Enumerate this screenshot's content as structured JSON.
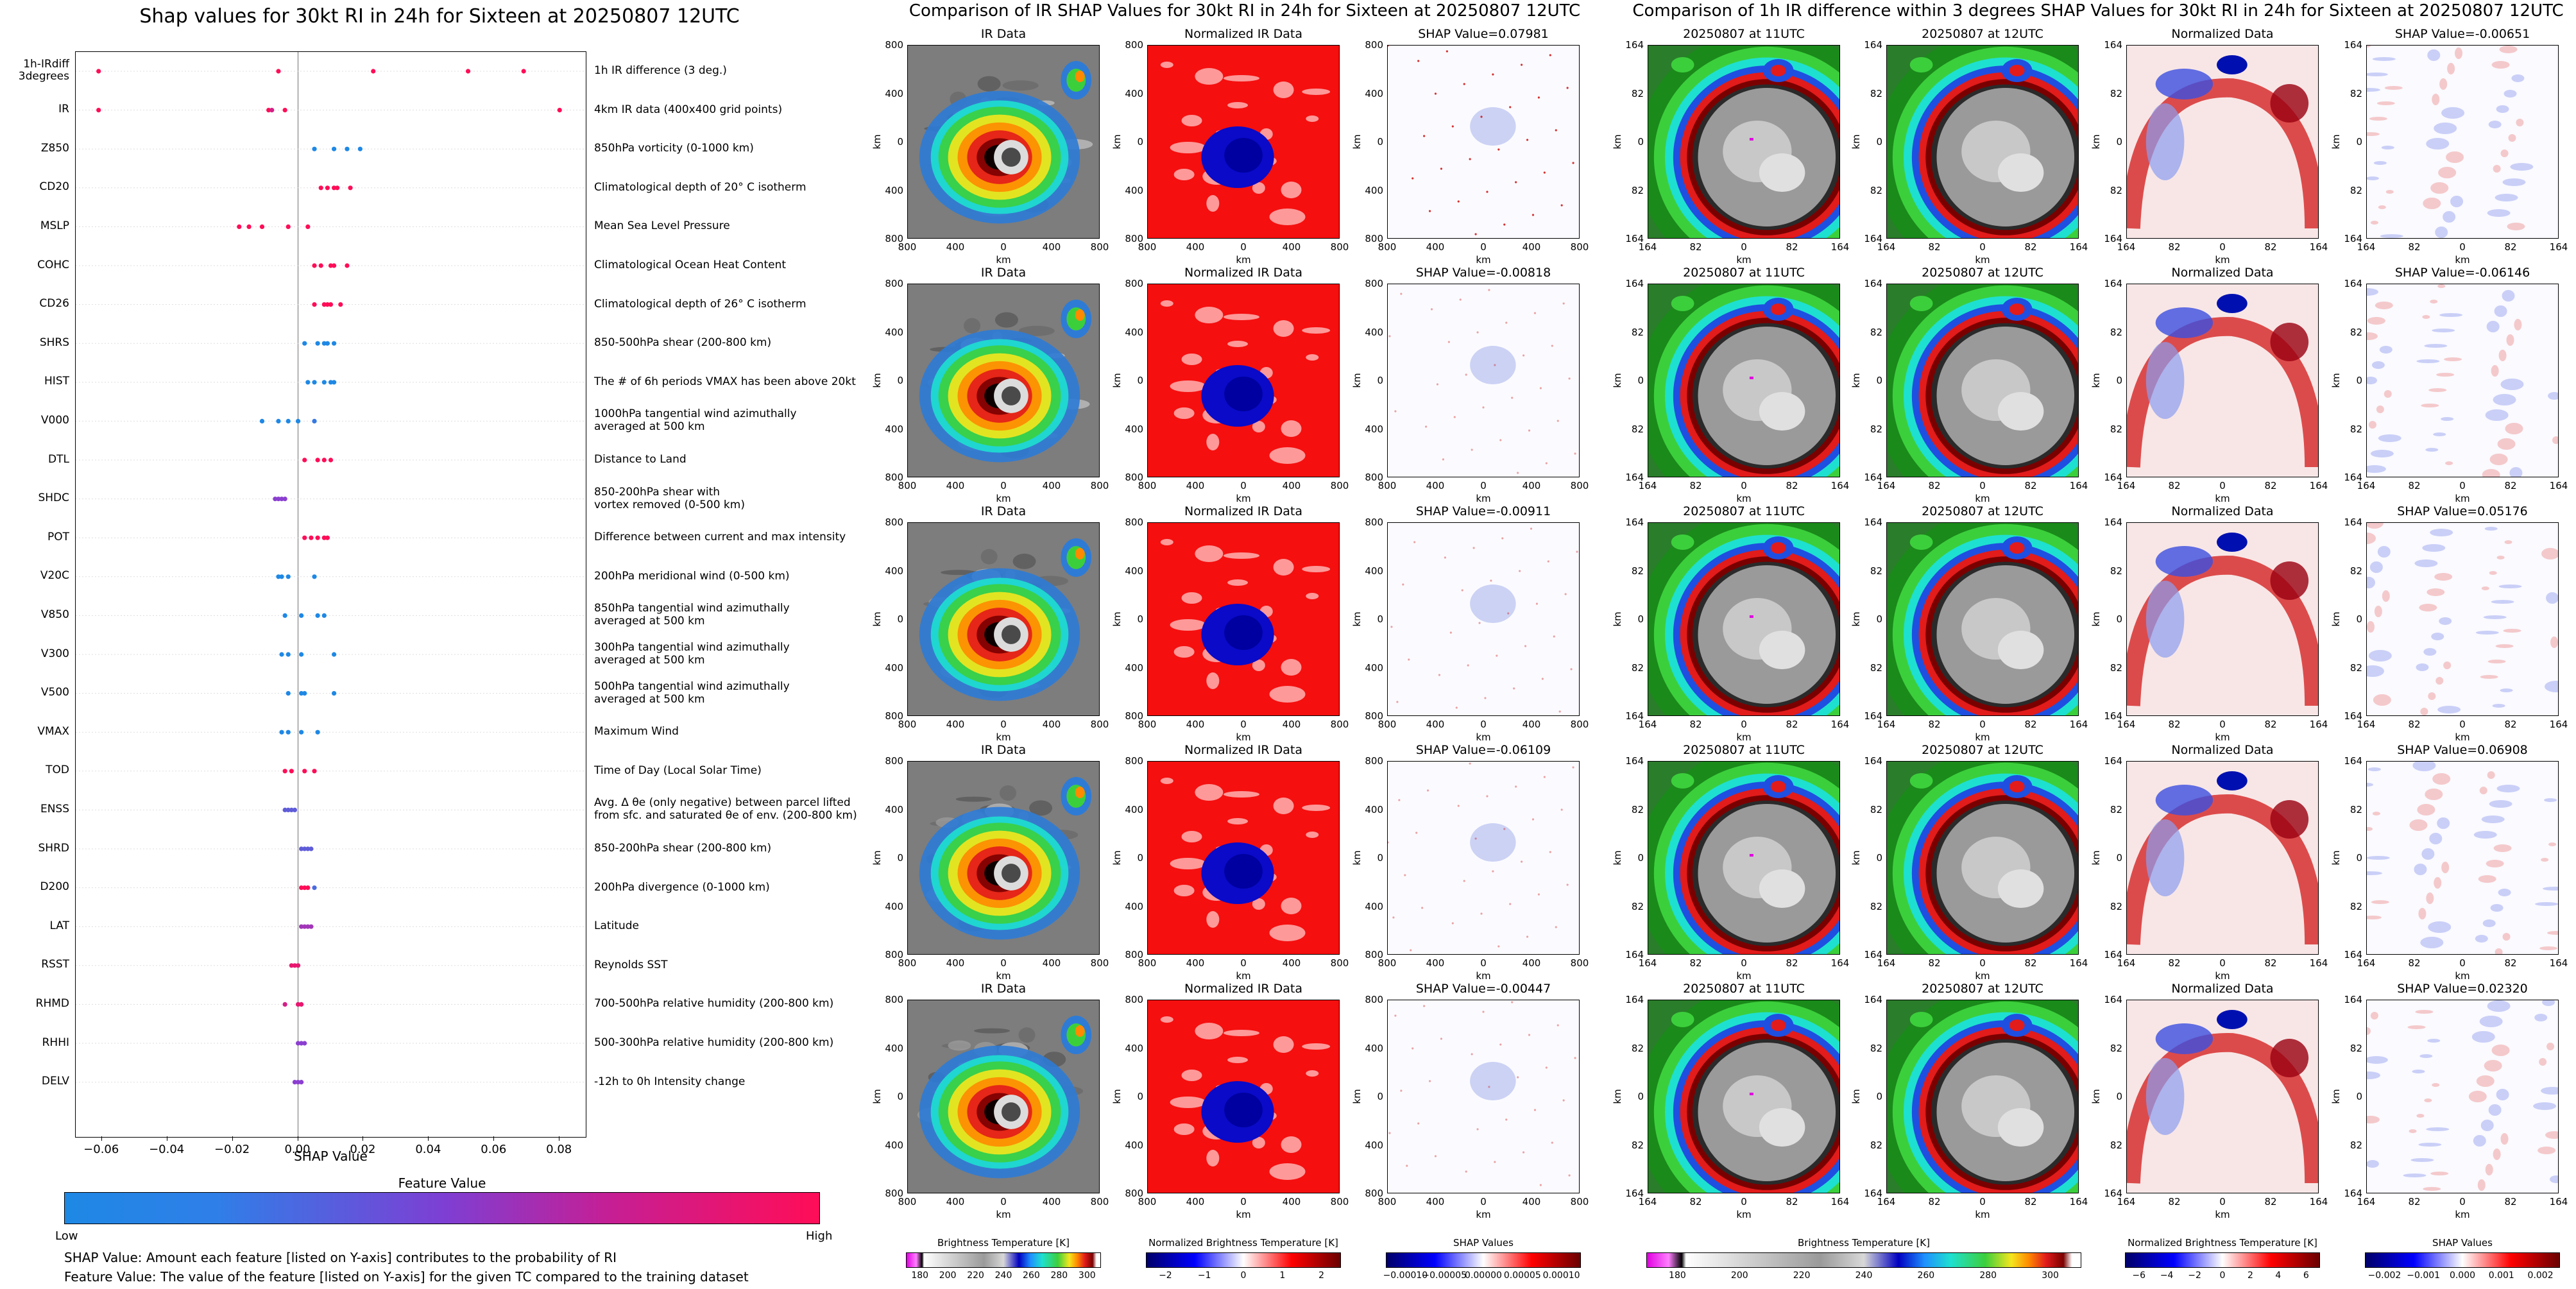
{
  "left_title": "Shap values for 30kt RI in 24h for Sixteen at 20250807 12UTC",
  "mid_title": "Comparison of IR SHAP Values for 30kt RI in 24h for Sixteen at 20250807 12UTC",
  "right_title": "Comparison of 1h IR difference within 3 degrees SHAP Values for 30kt RI in 24h for Sixteen at 20250807 12UTC",
  "xlabel": "SHAP Value",
  "fv_title": "Feature Value",
  "fv_low": "Low",
  "fv_high": "High",
  "note1": "SHAP Value: Amount each feature [listed on Y-axis] contributes to the probability of RI",
  "note2": "Feature Value: The value of the feature [listed on Y-axis] for the given TC compared to the training dataset",
  "colors": {
    "low": "#1e88e5",
    "mid": "#8b3fd0",
    "high": "#ff0d57"
  },
  "chart_data": {
    "type": "scatter",
    "title": "Shap values for 30kt RI in 24h for Sixteen at 20250807 12UTC",
    "xlabel": "SHAP Value",
    "xlim": [
      -0.068,
      0.088
    ],
    "xticks": [
      "−0.06",
      "−0.04",
      "−0.02",
      "0.00",
      "0.02",
      "0.04",
      "0.06",
      "0.08"
    ],
    "xtick_values": [
      -0.06,
      -0.04,
      -0.02,
      0.0,
      0.02,
      0.04,
      0.06,
      0.08
    ],
    "features": [
      {
        "name": "1h-IRdiff\n3degrees",
        "desc": "1h IR difference (3 deg.)",
        "points": [
          [
            -0.061,
            1
          ],
          [
            -0.006,
            1
          ],
          [
            0.023,
            1
          ],
          [
            0.052,
            1
          ],
          [
            0.069,
            1
          ]
        ]
      },
      {
        "name": "IR",
        "desc": "4km IR data (400x400 grid points)",
        "points": [
          [
            -0.061,
            1
          ],
          [
            -0.009,
            1
          ],
          [
            -0.008,
            0.8
          ],
          [
            -0.004,
            1
          ],
          [
            0.08,
            1
          ]
        ]
      },
      {
        "name": "Z850",
        "desc": "850hPa vorticity (0-1000 km)",
        "points": [
          [
            0.005,
            0
          ],
          [
            0.011,
            0
          ],
          [
            0.015,
            0
          ],
          [
            0.019,
            0
          ]
        ]
      },
      {
        "name": "CD20",
        "desc": "Climatological depth of 20° C isotherm",
        "points": [
          [
            0.007,
            1
          ],
          [
            0.009,
            1
          ],
          [
            0.011,
            1
          ],
          [
            0.012,
            1
          ],
          [
            0.016,
            1
          ]
        ]
      },
      {
        "name": "MSLP",
        "desc": "Mean Sea Level Pressure",
        "points": [
          [
            -0.018,
            1
          ],
          [
            -0.015,
            1
          ],
          [
            -0.011,
            1
          ],
          [
            -0.003,
            1
          ],
          [
            0.003,
            1
          ]
        ]
      },
      {
        "name": "COHC",
        "desc": "Climatological Ocean Heat Content",
        "points": [
          [
            0.005,
            1
          ],
          [
            0.007,
            1
          ],
          [
            0.01,
            1
          ],
          [
            0.011,
            1
          ],
          [
            0.015,
            1
          ]
        ]
      },
      {
        "name": "CD26",
        "desc": "Climatological depth of 26° C isotherm",
        "points": [
          [
            0.005,
            1
          ],
          [
            0.008,
            1
          ],
          [
            0.009,
            1
          ],
          [
            0.01,
            1
          ],
          [
            0.013,
            1
          ]
        ]
      },
      {
        "name": "SHRS",
        "desc": "850-500hPa shear (200-800 km)",
        "points": [
          [
            0.002,
            0
          ],
          [
            0.006,
            0
          ],
          [
            0.008,
            0
          ],
          [
            0.009,
            0
          ],
          [
            0.011,
            0
          ]
        ]
      },
      {
        "name": "HIST",
        "desc": "The # of 6h periods VMAX has been above 20kt",
        "points": [
          [
            0.003,
            0
          ],
          [
            0.005,
            0
          ],
          [
            0.008,
            0
          ],
          [
            0.01,
            0
          ],
          [
            0.011,
            0
          ]
        ]
      },
      {
        "name": "V000",
        "desc": "1000hPa tangential wind azimuthally\naveraged at 500 km",
        "points": [
          [
            -0.011,
            0
          ],
          [
            -0.006,
            0
          ],
          [
            -0.003,
            0
          ],
          [
            0.0,
            0
          ],
          [
            0.005,
            0.1
          ]
        ]
      },
      {
        "name": "DTL",
        "desc": "Distance to Land",
        "points": [
          [
            0.002,
            1
          ],
          [
            0.006,
            1
          ],
          [
            0.008,
            1
          ],
          [
            0.01,
            1
          ]
        ]
      },
      {
        "name": "SHDC",
        "desc": "850-200hPa shear with\nvortex removed (0-500 km)",
        "points": [
          [
            -0.007,
            0.5
          ],
          [
            -0.006,
            0.5
          ],
          [
            -0.005,
            0.5
          ],
          [
            -0.004,
            0.5
          ]
        ]
      },
      {
        "name": "POT",
        "desc": "Difference between current and max intensity",
        "points": [
          [
            0.002,
            1
          ],
          [
            0.004,
            1
          ],
          [
            0.006,
            1
          ],
          [
            0.008,
            1
          ],
          [
            0.009,
            1
          ]
        ]
      },
      {
        "name": "V20C",
        "desc": "200hPa meridional wind (0-500 km)",
        "points": [
          [
            -0.006,
            0
          ],
          [
            -0.005,
            0
          ],
          [
            -0.003,
            0
          ],
          [
            0.005,
            0
          ]
        ]
      },
      {
        "name": "V850",
        "desc": "850hPa tangential wind azimuthally\naveraged at 500 km",
        "points": [
          [
            -0.004,
            0
          ],
          [
            0.001,
            0
          ],
          [
            0.006,
            0
          ],
          [
            0.008,
            0
          ]
        ]
      },
      {
        "name": "V300",
        "desc": "300hPa tangential wind azimuthally\naveraged at 500 km",
        "points": [
          [
            -0.005,
            0
          ],
          [
            -0.003,
            0
          ],
          [
            0.001,
            0
          ],
          [
            0.011,
            0
          ]
        ]
      },
      {
        "name": "V500",
        "desc": "500hPa tangential wind azimuthally\naveraged at 500 km",
        "points": [
          [
            -0.003,
            0
          ],
          [
            0.001,
            0
          ],
          [
            0.002,
            0
          ],
          [
            0.011,
            0
          ]
        ]
      },
      {
        "name": "VMAX",
        "desc": "Maximum Wind",
        "points": [
          [
            -0.005,
            0
          ],
          [
            -0.003,
            0
          ],
          [
            0.001,
            0
          ],
          [
            0.006,
            0
          ]
        ]
      },
      {
        "name": "TOD",
        "desc": "Time of Day (Local Solar Time)",
        "points": [
          [
            -0.004,
            1
          ],
          [
            -0.002,
            1
          ],
          [
            0.002,
            1
          ],
          [
            0.005,
            1
          ]
        ]
      },
      {
        "name": "ENSS",
        "desc": "Avg. Δ θe (only negative) between parcel lifted\nfrom sfc. and saturated θe of env. (200-800 km)",
        "points": [
          [
            -0.004,
            0.3
          ],
          [
            -0.003,
            0.3
          ],
          [
            -0.002,
            0.3
          ],
          [
            -0.001,
            0.3
          ]
        ]
      },
      {
        "name": "SHRD",
        "desc": "850-200hPa shear (200-800 km)",
        "points": [
          [
            0.001,
            0.3
          ],
          [
            0.002,
            0.3
          ],
          [
            0.003,
            0.3
          ],
          [
            0.004,
            0.3
          ]
        ]
      },
      {
        "name": "D200",
        "desc": "200hPa divergence (0-1000 km)",
        "points": [
          [
            0.001,
            1
          ],
          [
            0.002,
            1
          ],
          [
            0.003,
            1
          ],
          [
            0.005,
            0.2
          ]
        ]
      },
      {
        "name": "LAT",
        "desc": "Latitude",
        "points": [
          [
            0.001,
            0.6
          ],
          [
            0.002,
            0.6
          ],
          [
            0.003,
            0.6
          ],
          [
            0.004,
            0.6
          ]
        ]
      },
      {
        "name": "RSST",
        "desc": "Reynolds SST",
        "points": [
          [
            -0.002,
            0.9
          ],
          [
            -0.001,
            0.9
          ],
          [
            0.0,
            0.9
          ]
        ]
      },
      {
        "name": "RHMD",
        "desc": "700-500hPa relative humidity (200-800 km)",
        "points": [
          [
            -0.004,
            0.8
          ],
          [
            0.0,
            0.9
          ],
          [
            0.001,
            0.9
          ]
        ]
      },
      {
        "name": "RHHI",
        "desc": "500-300hPa relative humidity (200-800 km)",
        "points": [
          [
            0.0,
            0.5
          ],
          [
            0.001,
            0.5
          ],
          [
            0.002,
            0.5
          ]
        ]
      },
      {
        "name": "DELV",
        "desc": "-12h to 0h Intensity change",
        "points": [
          [
            -0.001,
            0.5
          ],
          [
            0.0,
            0.5
          ],
          [
            0.001,
            0.5
          ]
        ]
      }
    ]
  },
  "ir_panels": {
    "headers": [
      "IR Data",
      "Normalized IR Data"
    ],
    "shap_titles": [
      "SHAP Value=0.07981",
      "SHAP Value=-0.00818",
      "SHAP Value=-0.00911",
      "SHAP Value=-0.06109",
      "SHAP Value=-0.00447"
    ],
    "yticks": [
      "800",
      "400",
      "0",
      "400",
      "800"
    ],
    "xticks": [
      "800",
      "400",
      "0",
      "400",
      "800"
    ],
    "axis_label": "km"
  },
  "diff_panels": {
    "headers": [
      "20250807 at 11UTC",
      "20250807 at 12UTC",
      "Normalized Data"
    ],
    "shap_titles": [
      "SHAP Value=-0.00651",
      "SHAP Value=-0.06146",
      "SHAP Value=0.05176",
      "SHAP Value=0.06908",
      "SHAP Value=0.02320"
    ],
    "yticks": [
      "164",
      "82",
      "0",
      "82",
      "164"
    ],
    "xticks": [
      "164",
      "82",
      "0",
      "82",
      "164"
    ],
    "axis_label": "km"
  },
  "colorbars": [
    {
      "label": "Brightness Temperature [K]",
      "ticks": [
        "180",
        "200",
        "220",
        "240",
        "260",
        "280",
        "300"
      ]
    },
    {
      "label": "Normalized Brightness Temperature [K]",
      "ticks": [
        "−2",
        "−1",
        "0",
        "1",
        "2"
      ]
    },
    {
      "label": "SHAP Values",
      "ticks": [
        "−0.00010",
        "−0.00005",
        "0.00000",
        "0.00005",
        "0.00010"
      ]
    },
    {
      "label": "Brightness Temperature [K]",
      "ticks": [
        "180",
        "200",
        "220",
        "240",
        "260",
        "280",
        "300"
      ]
    },
    {
      "label": "Normalized Brightness Temperature [K]",
      "ticks": [
        "−6",
        "−4",
        "−2",
        "0",
        "2",
        "4",
        "6"
      ]
    },
    {
      "label": "SHAP Values",
      "ticks": [
        "−0.002",
        "−0.001",
        "0.000",
        "0.001",
        "0.002"
      ]
    }
  ]
}
